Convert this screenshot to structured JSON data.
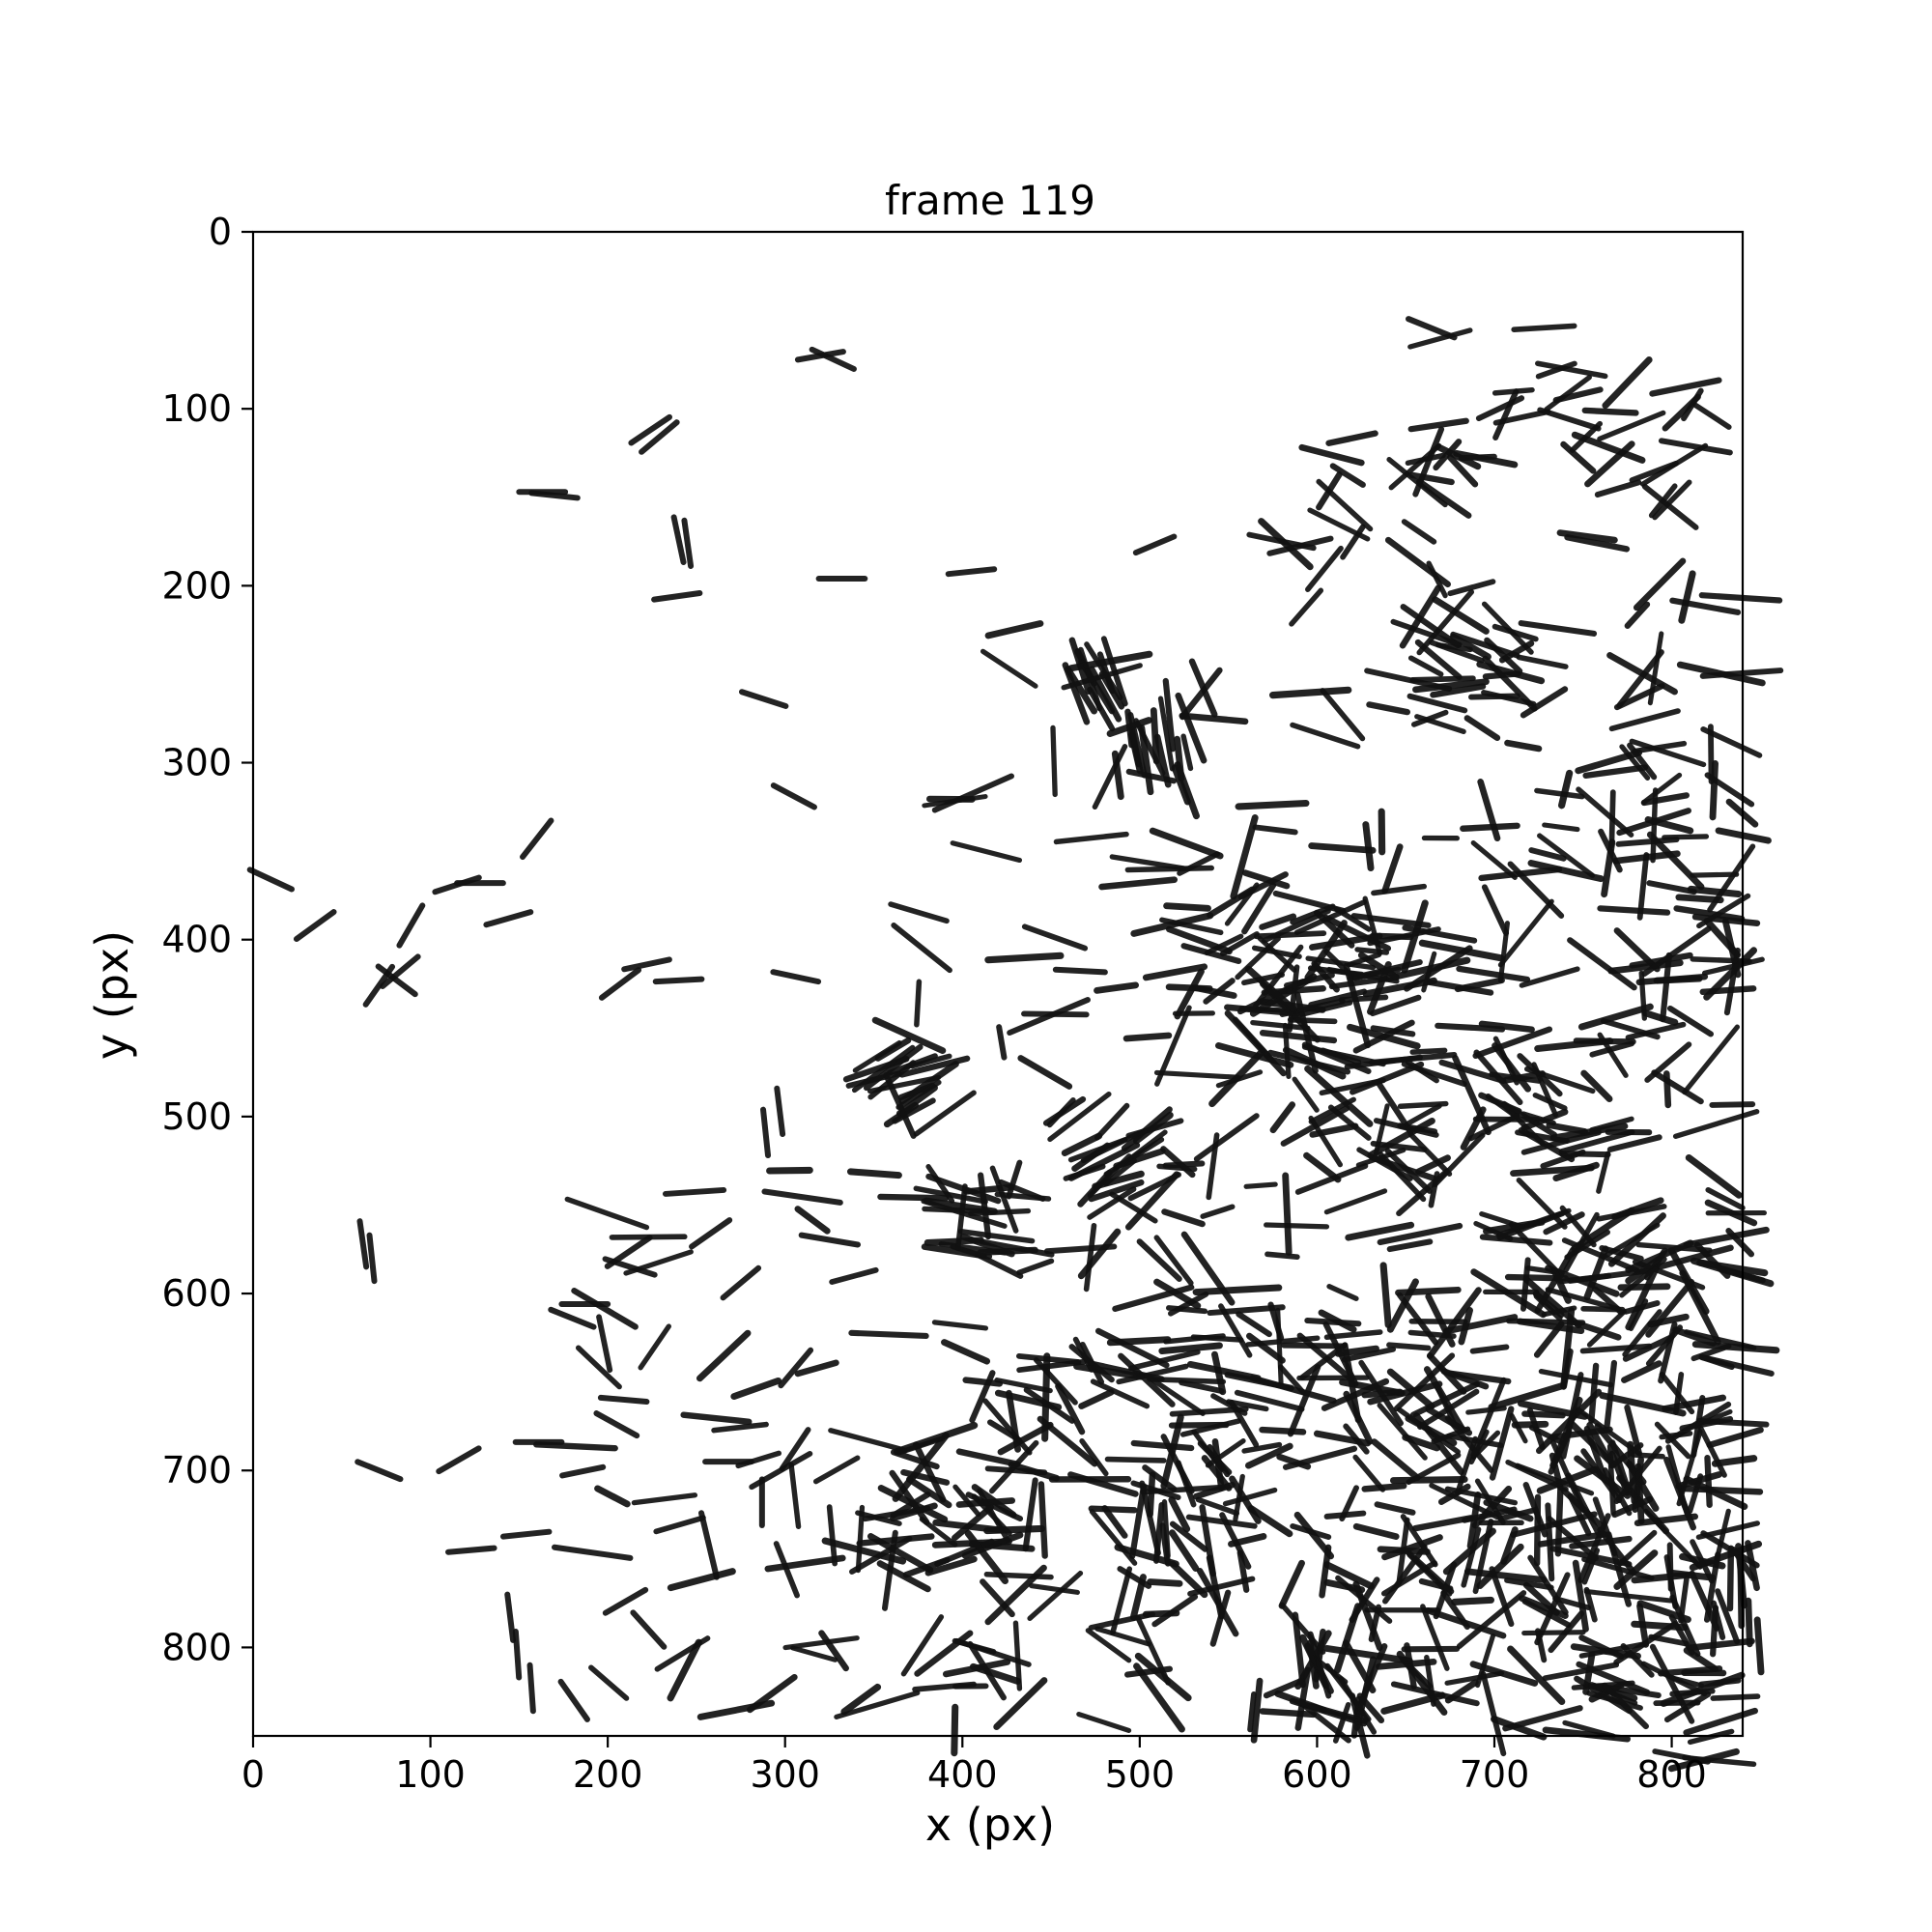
{
  "figure": {
    "title": "frame 119",
    "xlabel": "x (px)",
    "ylabel": "y (px)"
  },
  "image": {
    "description_kind": "microscopy image of rod-shaped bacteria",
    "background_color": "#ffffff",
    "cell_color": "#111111",
    "xlim": [
      0,
      840
    ],
    "ylim": [
      850,
      0
    ],
    "xticks": [
      0,
      100,
      200,
      300,
      400,
      500,
      600,
      700,
      800
    ],
    "yticks": [
      0,
      100,
      200,
      300,
      400,
      500,
      600,
      700,
      800
    ],
    "seed": 119,
    "density_rule": "cells increase strongly toward right and bottom"
  }
}
